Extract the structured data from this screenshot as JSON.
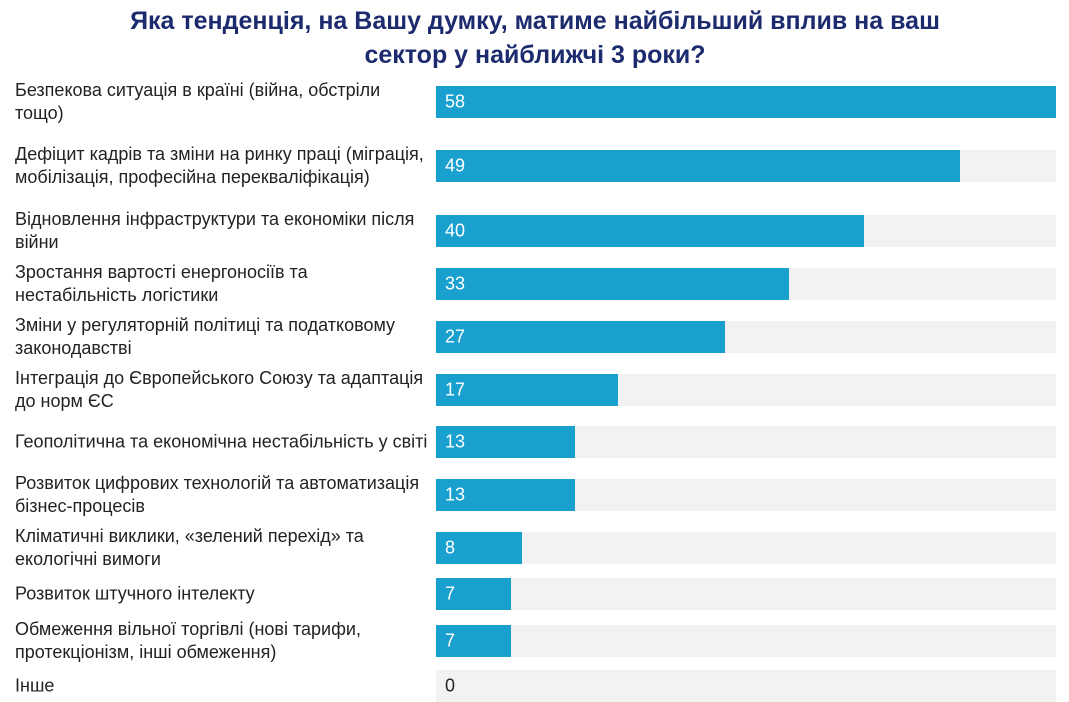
{
  "chart_data": {
    "type": "barh",
    "title": "Яка тенденція, на Вашу думку, матиме найбільший вплив на ваш сектор у найближчі 3 роки?",
    "categories": [
      "Безпекова ситуація в країні (війна, обстріли тощо)",
      "Дефіцит кадрів та зміни на ринку праці (міграція, мобілізація, професійна перекваліфікація)",
      "Відновлення інфраструктури та економіки після війни",
      "Зростання вартості енергоносіїв та нестабільність логістики",
      "Зміни у регуляторній політиці та податковому законодавстві",
      "Інтеграція до Європейського Союзу та адаптація до норм ЄС",
      "Геополітична та економічна нестабільність у світі",
      "Розвиток цифрових технологій та автоматизація бізнес-процесів",
      "Кліматичні виклики, «зелений перехід» та екологічні вимоги",
      "Розвиток штучного інтелекту",
      "Обмеження вільної торгівлі (нові тарифи, протекціонізм, інші обмеження)",
      "Інше"
    ],
    "values": [
      58,
      49,
      40,
      33,
      27,
      17,
      13,
      13,
      8,
      7,
      7,
      0
    ],
    "color": "#1aa0cf",
    "xlim": [
      0,
      58
    ]
  }
}
